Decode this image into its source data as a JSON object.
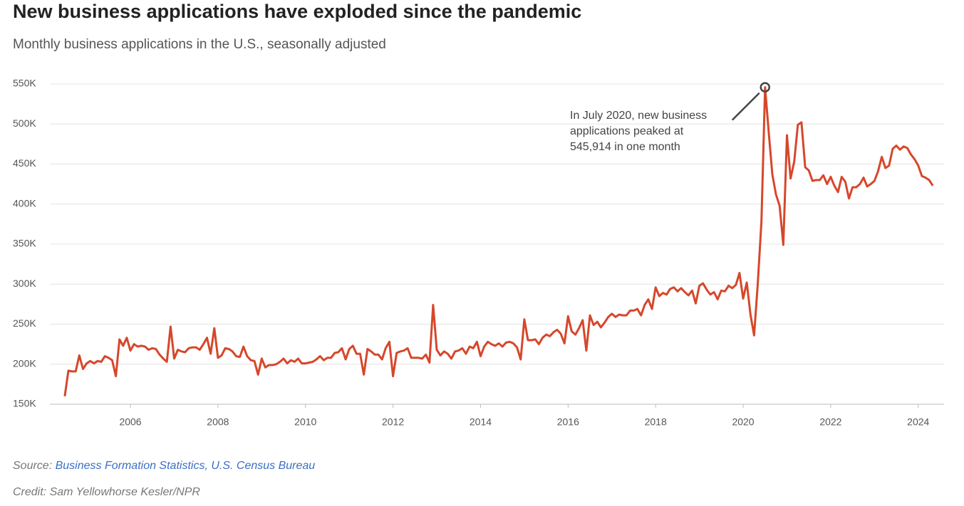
{
  "chart_data": {
    "type": "line",
    "title": "New business applications have exploded since the pandemic",
    "subtitle": "Monthly business applications in the U.S., seasonally adjusted",
    "annotation": [
      "In July 2020, new business",
      "applications peaked at",
      "545,914 in one month"
    ],
    "source_label": "Source:",
    "source": "Business Formation Statistics, U.S. Census Bureau",
    "credit": "Credit: Sam Yellowhorse Kesler/NPR",
    "color": "#d6472b",
    "grid": true,
    "xlim": [
      2004.16,
      2024.59
    ],
    "xticks": [
      2006,
      2008,
      2010,
      2012,
      2014,
      2016,
      2018,
      2020,
      2022,
      2024
    ],
    "ylim": [
      150000,
      550000
    ],
    "yticks": [
      {
        "value": 150000,
        "label": "150K"
      },
      {
        "value": 200000,
        "label": "200K"
      },
      {
        "value": 250000,
        "label": "250K"
      },
      {
        "value": 300000,
        "label": "300K"
      },
      {
        "value": 350000,
        "label": "350K"
      },
      {
        "value": 400000,
        "label": "400K"
      },
      {
        "value": 450000,
        "label": "450K"
      },
      {
        "value": 500000,
        "label": "500K"
      },
      {
        "value": 550000,
        "label": "550K"
      }
    ],
    "x": [
      2004.5,
      2004.583,
      2004.667,
      2004.75,
      2004.833,
      2004.917,
      2005,
      2005.083,
      2005.167,
      2005.25,
      2005.333,
      2005.417,
      2005.5,
      2005.583,
      2005.667,
      2005.75,
      2005.833,
      2005.917,
      2006,
      2006.083,
      2006.167,
      2006.25,
      2006.333,
      2006.417,
      2006.5,
      2006.583,
      2006.667,
      2006.75,
      2006.833,
      2006.917,
      2007,
      2007.083,
      2007.167,
      2007.25,
      2007.333,
      2007.417,
      2007.5,
      2007.583,
      2007.667,
      2007.75,
      2007.833,
      2007.917,
      2008,
      2008.083,
      2008.167,
      2008.25,
      2008.333,
      2008.417,
      2008.5,
      2008.583,
      2008.667,
      2008.75,
      2008.833,
      2008.917,
      2009,
      2009.083,
      2009.167,
      2009.25,
      2009.333,
      2009.417,
      2009.5,
      2009.583,
      2009.667,
      2009.75,
      2009.833,
      2009.917,
      2010,
      2010.083,
      2010.167,
      2010.25,
      2010.333,
      2010.417,
      2010.5,
      2010.583,
      2010.667,
      2010.75,
      2010.833,
      2010.917,
      2011,
      2011.083,
      2011.167,
      2011.25,
      2011.333,
      2011.417,
      2011.5,
      2011.583,
      2011.667,
      2011.75,
      2011.833,
      2011.917,
      2012,
      2012.083,
      2012.167,
      2012.25,
      2012.333,
      2012.417,
      2012.5,
      2012.583,
      2012.667,
      2012.75,
      2012.833,
      2012.917,
      2013,
      2013.083,
      2013.167,
      2013.25,
      2013.333,
      2013.417,
      2013.5,
      2013.583,
      2013.667,
      2013.75,
      2013.833,
      2013.917,
      2014,
      2014.083,
      2014.167,
      2014.25,
      2014.333,
      2014.417,
      2014.5,
      2014.583,
      2014.667,
      2014.75,
      2014.833,
      2014.917,
      2015,
      2015.083,
      2015.167,
      2015.25,
      2015.333,
      2015.417,
      2015.5,
      2015.583,
      2015.667,
      2015.75,
      2015.833,
      2015.917,
      2016,
      2016.083,
      2016.167,
      2016.25,
      2016.333,
      2016.417,
      2016.5,
      2016.583,
      2016.667,
      2016.75,
      2016.833,
      2016.917,
      2017,
      2017.083,
      2017.167,
      2017.25,
      2017.333,
      2017.417,
      2017.5,
      2017.583,
      2017.667,
      2017.75,
      2017.833,
      2017.917,
      2018,
      2018.083,
      2018.167,
      2018.25,
      2018.333,
      2018.417,
      2018.5,
      2018.583,
      2018.667,
      2018.75,
      2018.833,
      2018.917,
      2019,
      2019.083,
      2019.167,
      2019.25,
      2019.333,
      2019.417,
      2019.5,
      2019.583,
      2019.667,
      2019.75,
      2019.833,
      2019.917,
      2020,
      2020.083,
      2020.167,
      2020.25,
      2020.333,
      2020.417,
      2020.5,
      2020.583,
      2020.667,
      2020.75,
      2020.833,
      2020.917,
      2021,
      2021.083,
      2021.167,
      2021.25,
      2021.333,
      2021.417,
      2021.5,
      2021.583,
      2021.667,
      2021.75,
      2021.833,
      2021.917,
      2022,
      2022.083,
      2022.167,
      2022.25,
      2022.333,
      2022.417,
      2022.5,
      2022.583,
      2022.667,
      2022.75,
      2022.833,
      2022.917,
      2023,
      2023.083,
      2023.167,
      2023.25,
      2023.333,
      2023.417,
      2023.5,
      2023.583,
      2023.667,
      2023.75,
      2023.833,
      2023.917,
      2024,
      2024.083,
      2024.167,
      2024.25,
      2024.333
    ],
    "values": [
      160000,
      192000,
      191000,
      191000,
      211000,
      194000,
      201000,
      204000,
      201000,
      204000,
      203000,
      210000,
      208000,
      205000,
      185000,
      231000,
      223000,
      233000,
      217000,
      225000,
      222000,
      223000,
      222000,
      218000,
      220000,
      219000,
      212000,
      207000,
      203000,
      247000,
      207000,
      218000,
      216000,
      215000,
      220000,
      221000,
      221000,
      218000,
      225000,
      233000,
      213000,
      245000,
      208000,
      211000,
      220000,
      219000,
      216000,
      210000,
      209000,
      222000,
      210000,
      205000,
      204000,
      187000,
      207000,
      196000,
      199000,
      199000,
      200000,
      203000,
      207000,
      201000,
      205000,
      203000,
      207000,
      201000,
      201000,
      202000,
      203000,
      206000,
      210000,
      205000,
      208000,
      208000,
      214000,
      215000,
      220000,
      206000,
      219000,
      223000,
      213000,
      213000,
      187000,
      219000,
      216000,
      212000,
      212000,
      206000,
      220000,
      228000,
      185000,
      214000,
      216000,
      217000,
      220000,
      208000,
      208000,
      208000,
      207000,
      212000,
      202000,
      274000,
      218000,
      211000,
      216000,
      213000,
      207000,
      216000,
      217000,
      220000,
      213000,
      222000,
      220000,
      228000,
      210000,
      222000,
      228000,
      225000,
      223000,
      226000,
      222000,
      227000,
      228000,
      226000,
      221000,
      206000,
      256000,
      230000,
      230000,
      231000,
      225000,
      233000,
      237000,
      235000,
      240000,
      243000,
      238000,
      226000,
      260000,
      241000,
      237000,
      245000,
      255000,
      217000,
      261000,
      249000,
      253000,
      246000,
      252000,
      259000,
      263000,
      259000,
      262000,
      261000,
      261000,
      267000,
      267000,
      269000,
      261000,
      274000,
      281000,
      269000,
      296000,
      285000,
      289000,
      287000,
      294000,
      296000,
      291000,
      295000,
      290000,
      286000,
      292000,
      276000,
      298000,
      301000,
      293000,
      287000,
      290000,
      281000,
      292000,
      291000,
      298000,
      295000,
      299000,
      314000,
      282000,
      302000,
      262000,
      236000,
      300000,
      378000,
      545914,
      490000,
      437000,
      412000,
      398000,
      349000,
      486000,
      432000,
      453000,
      499000,
      502000,
      446000,
      442000,
      429000,
      430000,
      430000,
      436000,
      425000,
      434000,
      423000,
      415000,
      434000,
      428000,
      407000,
      421000,
      421000,
      425000,
      433000,
      422000,
      425000,
      429000,
      441000,
      459000,
      445000,
      448000,
      469000,
      473000,
      468000,
      472000,
      470000,
      462000,
      456000,
      448000,
      435000,
      433000,
      430000,
      423000
    ]
  }
}
